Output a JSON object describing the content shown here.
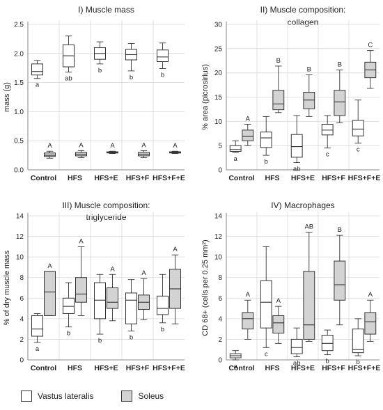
{
  "colors": {
    "vastus_fill": "#ffffff",
    "soleus_fill": "#d3d3d3",
    "box_stroke": "#333333",
    "grid": "#d8d8d8"
  },
  "legend": [
    {
      "label": "Vastus lateralis",
      "color": "#ffffff"
    },
    {
      "label": "Soleus",
      "color": "#d3d3d3"
    }
  ],
  "chart_data": [
    {
      "type": "box",
      "title": [
        "I) Muscle mass"
      ],
      "ylabel": "mass (g)",
      "ylim": [
        0,
        2.5
      ],
      "yticks": [
        "0.0",
        "0.5",
        "1.0",
        "1.5",
        "2.0",
        "2.5"
      ],
      "categories": [
        "Control",
        "HFS",
        "HFS+E",
        "HFS+F",
        "HFS+F+E"
      ],
      "series": [
        {
          "name": "Vastus lateralis",
          "boxes": [
            {
              "min": 1.57,
              "q1": 1.63,
              "median": 1.69,
              "q3": 1.82,
              "max": 1.88
            },
            {
              "min": 1.68,
              "q1": 1.77,
              "median": 1.96,
              "q3": 2.15,
              "max": 2.3
            },
            {
              "min": 1.82,
              "q1": 1.9,
              "median": 2.0,
              "q3": 2.1,
              "max": 2.2
            },
            {
              "min": 1.7,
              "q1": 1.89,
              "median": 1.98,
              "q3": 2.07,
              "max": 2.17
            },
            {
              "min": 1.74,
              "q1": 1.86,
              "median": 1.94,
              "q3": 2.06,
              "max": 2.18
            }
          ],
          "labels": [
            "a",
            "ab",
            "b",
            "b",
            "b"
          ]
        },
        {
          "name": "Soleus",
          "boxes": [
            {
              "min": 0.2,
              "q1": 0.23,
              "median": 0.25,
              "q3": 0.29,
              "max": 0.32
            },
            {
              "min": 0.21,
              "q1": 0.24,
              "median": 0.27,
              "q3": 0.3,
              "max": 0.33
            },
            {
              "min": 0.28,
              "q1": 0.29,
              "median": 0.3,
              "q3": 0.31,
              "max": 0.32
            },
            {
              "min": 0.21,
              "q1": 0.24,
              "median": 0.27,
              "q3": 0.3,
              "max": 0.33
            },
            {
              "min": 0.28,
              "q1": 0.29,
              "median": 0.3,
              "q3": 0.31,
              "max": 0.32
            }
          ],
          "labels": [
            "A",
            "A",
            "A",
            "A",
            "A"
          ]
        }
      ]
    },
    {
      "type": "box",
      "title": [
        "II) Muscle composition:",
        "collagen"
      ],
      "ylabel": "% area (picrosirius)",
      "ylim": [
        0,
        30
      ],
      "yticks": [
        "0",
        "5",
        "10",
        "15",
        "20",
        "25",
        "30"
      ],
      "categories": [
        "Control",
        "HFS",
        "HFS+E",
        "HFS+F",
        "HFS+F+E"
      ],
      "series": [
        {
          "name": "Vastus lateralis",
          "boxes": [
            {
              "min": 3.6,
              "q1": 3.8,
              "median": 4.2,
              "q3": 5.0,
              "max": 6.0
            },
            {
              "min": 3.0,
              "q1": 4.6,
              "median": 6.6,
              "q3": 7.8,
              "max": 11.0
            },
            {
              "min": 1.5,
              "q1": 2.6,
              "median": 4.8,
              "q3": 7.3,
              "max": 11.2
            },
            {
              "min": 4.5,
              "q1": 7.2,
              "median": 8.2,
              "q3": 9.4,
              "max": 11.2
            },
            {
              "min": 5.5,
              "q1": 7.0,
              "median": 8.4,
              "q3": 10.2,
              "max": 14.4
            }
          ],
          "labels": [
            "a",
            "b",
            "ab",
            "c",
            "c"
          ]
        },
        {
          "name": "Soleus",
          "boxes": [
            {
              "min": 5.0,
              "q1": 6.0,
              "median": 6.9,
              "q3": 8.2,
              "max": 9.4
            },
            {
              "min": 11.8,
              "q1": 12.4,
              "median": 13.6,
              "q3": 16.4,
              "max": 21.4
            },
            {
              "min": 11.0,
              "q1": 12.6,
              "median": 14.4,
              "q3": 16.0,
              "max": 19.6
            },
            {
              "min": 9.7,
              "q1": 11.2,
              "median": 14.0,
              "q3": 16.4,
              "max": 20.6
            },
            {
              "min": 16.8,
              "q1": 19.0,
              "median": 20.6,
              "q3": 22.2,
              "max": 24.6
            }
          ],
          "labels": [
            "A",
            "B",
            "B",
            "B",
            "C"
          ]
        }
      ]
    },
    {
      "type": "box",
      "title": [
        "III) Muscle composition:",
        "triglyceride"
      ],
      "ylabel": "% of dry muscle mass",
      "ylim": [
        0,
        14
      ],
      "yticks": [
        "0",
        "2",
        "4",
        "6",
        "8",
        "10",
        "12",
        "14"
      ],
      "categories": [
        "Control",
        "HFS",
        "HFS+E",
        "HFS+F",
        "HFS+F+E"
      ],
      "series": [
        {
          "name": "Vastus lateralis",
          "boxes": [
            {
              "min": 1.7,
              "q1": 2.3,
              "median": 3.0,
              "q3": 4.3,
              "max": 4.5
            },
            {
              "min": 3.2,
              "q1": 4.5,
              "median": 5.2,
              "q3": 6.0,
              "max": 7.5
            },
            {
              "min": 2.5,
              "q1": 4.0,
              "median": 5.8,
              "q3": 7.5,
              "max": 8.3
            },
            {
              "min": 2.8,
              "q1": 3.5,
              "median": 5.8,
              "q3": 6.5,
              "max": 7.8
            },
            {
              "min": 3.6,
              "q1": 4.4,
              "median": 5.0,
              "q3": 6.2,
              "max": 8.3
            }
          ],
          "labels": [
            "a",
            "b",
            "b",
            "b",
            "b"
          ]
        },
        {
          "name": "Soleus",
          "boxes": [
            {
              "min": 4.3,
              "q1": 4.3,
              "median": 6.6,
              "q3": 8.6,
              "max": 8.6
            },
            {
              "min": 4.3,
              "q1": 5.6,
              "median": 6.4,
              "q3": 8.0,
              "max": 11.0
            },
            {
              "min": 3.8,
              "q1": 5.0,
              "median": 5.6,
              "q3": 7.0,
              "max": 8.3
            },
            {
              "min": 3.9,
              "q1": 4.9,
              "median": 5.6,
              "q3": 6.3,
              "max": 7.9
            },
            {
              "min": 3.5,
              "q1": 5.0,
              "median": 6.9,
              "q3": 8.8,
              "max": 10.2
            }
          ],
          "labels": [
            "A",
            "A",
            "A",
            "A",
            "A"
          ]
        }
      ]
    },
    {
      "type": "box",
      "title": [
        "IV) Macrophages"
      ],
      "ylabel": "CD 68+ (cells per 0.25 mm²)",
      "ylim": [
        0,
        14
      ],
      "yticks": [
        "0",
        "2",
        "4",
        "6",
        "8",
        "10",
        "12",
        "14"
      ],
      "categories": [
        "Control",
        "HFS",
        "HFS+E",
        "HFS+F",
        "HFS+F+E"
      ],
      "series": [
        {
          "name": "Vastus lateralis",
          "boxes": [
            {
              "min": 0.0,
              "q1": 0.2,
              "median": 0.4,
              "q3": 0.6,
              "max": 0.9
            },
            {
              "min": 1.2,
              "q1": 3.1,
              "median": 5.6,
              "q3": 7.7,
              "max": 11.0
            },
            {
              "min": 0.3,
              "q1": 0.6,
              "median": 1.2,
              "q3": 2.0,
              "max": 3.1
            },
            {
              "min": 0.5,
              "q1": 0.9,
              "median": 1.6,
              "q3": 2.4,
              "max": 2.9
            },
            {
              "min": 0.4,
              "q1": 0.7,
              "median": 1.0,
              "q3": 3.0,
              "max": 4.0
            }
          ],
          "labels": [
            "a",
            "c",
            "ab",
            "b",
            "b"
          ]
        },
        {
          "name": "Soleus",
          "boxes": [
            {
              "min": 2.0,
              "q1": 3.0,
              "median": 4.0,
              "q3": 4.6,
              "max": 5.8
            },
            {
              "min": 1.6,
              "q1": 2.6,
              "median": 3.6,
              "q3": 4.3,
              "max": 5.2
            },
            {
              "min": 1.8,
              "q1": 2.0,
              "median": 3.4,
              "q3": 8.6,
              "max": 12.4
            },
            {
              "min": 3.4,
              "q1": 5.8,
              "median": 7.3,
              "q3": 9.6,
              "max": 12.1
            },
            {
              "min": 1.8,
              "q1": 2.5,
              "median": 3.7,
              "q3": 4.6,
              "max": 5.8
            }
          ],
          "labels": [
            "A",
            "A",
            "AB",
            "B",
            "A"
          ]
        }
      ]
    }
  ]
}
